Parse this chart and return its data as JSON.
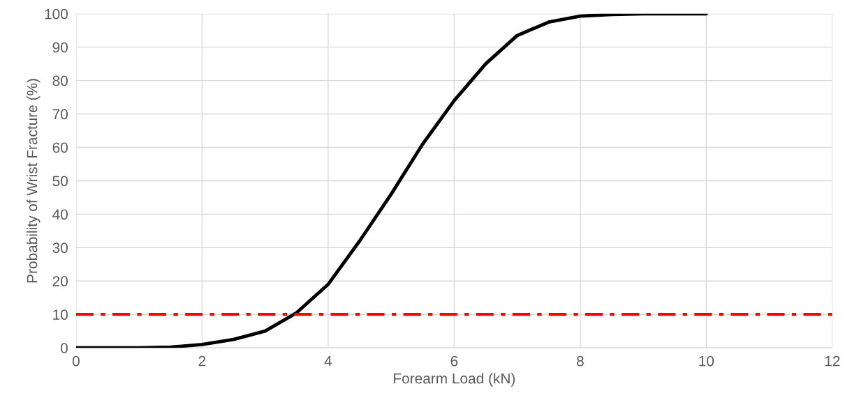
{
  "chart_data": {
    "type": "line",
    "xlabel": "Forearm Load (kN)",
    "ylabel": "Probability of Wrist Fracture (%)",
    "x": [
      0,
      0.5,
      1,
      1.5,
      2,
      2.5,
      3,
      3.5,
      4,
      4.5,
      5,
      5.5,
      6,
      6.5,
      7,
      7.5,
      8,
      8.5,
      9,
      9.5,
      10
    ],
    "series": [
      {
        "color": "#000000",
        "values": [
          0,
          0,
          0,
          0.2,
          1,
          2.5,
          5,
          10.5,
          19,
          32,
          46,
          61,
          74,
          85,
          93.5,
          97.5,
          99.3,
          99.8,
          100,
          100,
          100
        ]
      }
    ],
    "ref_lines": [
      {
        "axis": "y",
        "value": 10,
        "color": "#ff0000",
        "line_style": "dashdot"
      }
    ],
    "xlim": [
      0,
      12
    ],
    "xticks": [
      0,
      2,
      4,
      6,
      8,
      10,
      12
    ],
    "ylim": [
      0,
      100
    ],
    "yticks": [
      0,
      10,
      20,
      30,
      40,
      50,
      60,
      70,
      80,
      90,
      100
    ],
    "grid": true,
    "legend": false,
    "marker": "none",
    "line_style": "solid"
  }
}
